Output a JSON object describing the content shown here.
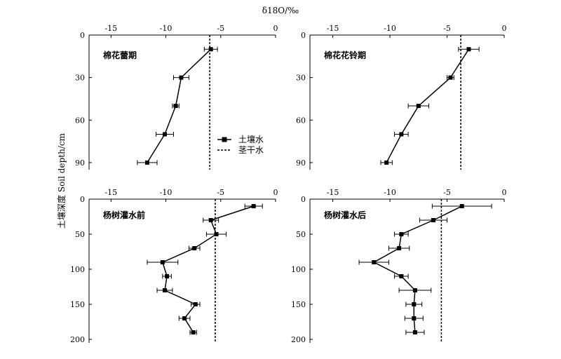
{
  "figure": {
    "top_axis_label": "δ18O/‰",
    "y_axis_label": "土壤深度 Soil depth/cm"
  },
  "legend": {
    "soil_label": "土壤水",
    "stem_label": "茎干水"
  },
  "chart_data": [
    {
      "type": "line",
      "panel": "top-left",
      "title": "棉花蕾期",
      "xlim": [
        -17,
        0
      ],
      "ylim": [
        0,
        95
      ],
      "xticks": [
        -15,
        -10,
        -5,
        0
      ],
      "yticks": [
        0,
        30,
        60,
        90
      ],
      "stem_water": -6,
      "series": [
        {
          "name": "土壤水",
          "points": [
            {
              "x": -5.9,
              "y": 10,
              "err": 0.6
            },
            {
              "x": -8.6,
              "y": 30,
              "err": 0.7
            },
            {
              "x": -9.1,
              "y": 50,
              "err": 0.3
            },
            {
              "x": -10.1,
              "y": 70,
              "err": 0.8
            },
            {
              "x": -11.7,
              "y": 90,
              "err": 0.9
            }
          ]
        }
      ]
    },
    {
      "type": "line",
      "panel": "top-right",
      "title": "棉花花铃期",
      "xlim": [
        -17,
        0
      ],
      "ylim": [
        0,
        95
      ],
      "xticks": [
        -15,
        -10,
        -5,
        0
      ],
      "yticks": [
        0,
        30,
        60,
        90
      ],
      "stem_water": -3.8,
      "series": [
        {
          "name": "土壤水",
          "points": [
            {
              "x": -3.1,
              "y": 10,
              "err": 0.9
            },
            {
              "x": -4.7,
              "y": 30,
              "err": 0.3
            },
            {
              "x": -7.5,
              "y": 50,
              "err": 0.9
            },
            {
              "x": -9.0,
              "y": 70,
              "err": 0.6
            },
            {
              "x": -10.3,
              "y": 90,
              "err": 0.5
            }
          ]
        }
      ]
    },
    {
      "type": "line",
      "panel": "bottom-left",
      "title": "杨树灌水前",
      "xlim": [
        -17,
        0
      ],
      "ylim": [
        0,
        205
      ],
      "xticks": [
        -15,
        -10,
        -5,
        0
      ],
      "yticks": [
        0,
        50,
        100,
        150,
        200
      ],
      "stem_water": -5.5,
      "series": [
        {
          "name": "土壤水",
          "points": [
            {
              "x": -2.0,
              "y": 10,
              "err": 0.8
            },
            {
              "x": -5.9,
              "y": 30,
              "err": 0.7
            },
            {
              "x": -5.4,
              "y": 50,
              "err": 0.9
            },
            {
              "x": -7.4,
              "y": 70,
              "err": 0.5
            },
            {
              "x": -10.3,
              "y": 90,
              "err": 1.4
            },
            {
              "x": -9.9,
              "y": 110,
              "err": 0.4
            },
            {
              "x": -10.1,
              "y": 130,
              "err": 0.7
            },
            {
              "x": -7.3,
              "y": 150,
              "err": 0.4
            },
            {
              "x": -8.3,
              "y": 170,
              "err": 0.5
            },
            {
              "x": -7.5,
              "y": 190,
              "err": 0.3
            }
          ]
        }
      ]
    },
    {
      "type": "line",
      "panel": "bottom-right",
      "title": "杨树灌水后",
      "xlim": [
        -17,
        0
      ],
      "ylim": [
        0,
        205
      ],
      "xticks": [
        -15,
        -10,
        -5,
        0
      ],
      "yticks": [
        0,
        50,
        100,
        150,
        200
      ],
      "stem_water": -5.5,
      "series": [
        {
          "name": "土壤水",
          "points": [
            {
              "x": -3.7,
              "y": 10,
              "err": 2.6
            },
            {
              "x": -6.2,
              "y": 30,
              "err": 1.2
            },
            {
              "x": -9.0,
              "y": 50,
              "err": 0.6
            },
            {
              "x": -9.2,
              "y": 70,
              "err": 0.9
            },
            {
              "x": -11.4,
              "y": 90,
              "err": 1.3
            },
            {
              "x": -9.0,
              "y": 110,
              "err": 0.6
            },
            {
              "x": -7.8,
              "y": 130,
              "err": 1.4
            },
            {
              "x": -7.9,
              "y": 150,
              "err": 0.7
            },
            {
              "x": -7.9,
              "y": 170,
              "err": 0.8
            },
            {
              "x": -7.8,
              "y": 190,
              "err": 0.8
            }
          ]
        }
      ]
    }
  ]
}
